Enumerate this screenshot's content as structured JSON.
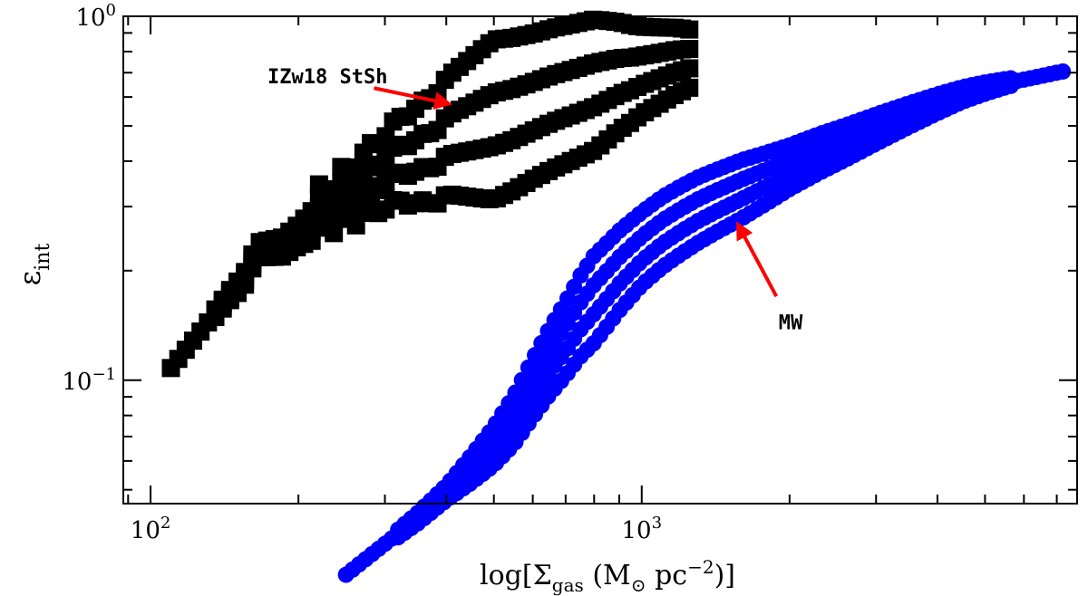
{
  "chart_data": {
    "type": "scatter",
    "xscale": "log",
    "yscale": "log",
    "xlim": [
      88,
      7700
    ],
    "ylim": [
      0.0458,
      1.0
    ],
    "xticks": [
      {
        "value": 100,
        "base": "10",
        "exp": "2"
      },
      {
        "value": 1000,
        "base": "10",
        "exp": "3"
      }
    ],
    "yticks": [
      {
        "value": 0.1,
        "base": "10",
        "exp": "−1"
      },
      {
        "value": 1.0,
        "base": "10",
        "exp": "0"
      }
    ],
    "xlabel": {
      "pre": "log[Σ",
      "sub1": "gas",
      "mid": " (M",
      "sub2": "⊙",
      "mid2": " pc",
      "sup": "−2",
      "post": ")]"
    },
    "ylabel": {
      "main": "ε",
      "sub": "int"
    },
    "grid": false,
    "series": [
      {
        "name": "IZw18 StSh",
        "marker": "square",
        "color": "#000000",
        "center": [
          [
            110,
            0.108
          ],
          [
            145,
            0.171
          ],
          [
            155,
            0.188
          ],
          [
            165,
            0.228
          ],
          [
            185,
            0.232
          ],
          [
            200,
            0.25
          ],
          [
            215,
            0.268
          ],
          [
            215,
            0.32
          ],
          [
            235,
            0.285
          ],
          [
            245,
            0.335
          ],
          [
            265,
            0.315
          ],
          [
            275,
            0.37
          ],
          [
            295,
            0.355
          ],
          [
            315,
            0.41
          ],
          [
            335,
            0.4
          ],
          [
            360,
            0.43
          ],
          [
            380,
            0.425
          ],
          [
            400,
            0.47
          ],
          [
            430,
            0.485
          ],
          [
            460,
            0.5
          ],
          [
            500,
            0.52
          ],
          [
            540,
            0.535
          ],
          [
            580,
            0.555
          ],
          [
            620,
            0.575
          ],
          [
            660,
            0.595
          ],
          [
            700,
            0.61
          ],
          [
            740,
            0.625
          ],
          [
            780,
            0.64
          ],
          [
            820,
            0.655
          ],
          [
            860,
            0.67
          ],
          [
            900,
            0.685
          ],
          [
            950,
            0.695
          ],
          [
            1000,
            0.71
          ],
          [
            1060,
            0.725
          ],
          [
            1120,
            0.74
          ],
          [
            1180,
            0.755
          ],
          [
            1250,
            0.765
          ]
        ],
        "half_width": [
          [
            110,
            0
          ],
          [
            200,
            0.03
          ],
          [
            300,
            0.1
          ],
          [
            400,
            0.16
          ],
          [
            500,
            0.22
          ],
          [
            600,
            0.2
          ],
          [
            800,
            0.18
          ],
          [
            1000,
            0.12
          ],
          [
            1250,
            0.08
          ]
        ]
      },
      {
        "name": "MW",
        "marker": "circle",
        "color": "#0000ff",
        "center": [
          [
            250,
            0.0292
          ],
          [
            300,
            0.0355
          ],
          [
            350,
            0.0418
          ],
          [
            400,
            0.049
          ],
          [
            450,
            0.057
          ],
          [
            500,
            0.066
          ],
          [
            550,
            0.078
          ],
          [
            600,
            0.095
          ],
          [
            650,
            0.113
          ],
          [
            700,
            0.13
          ],
          [
            750,
            0.15
          ],
          [
            800,
            0.167
          ],
          [
            850,
            0.183
          ],
          [
            900,
            0.2
          ],
          [
            1000,
            0.23
          ],
          [
            1100,
            0.255
          ],
          [
            1200,
            0.275
          ],
          [
            1300,
            0.293
          ],
          [
            1400,
            0.308
          ],
          [
            1600,
            0.335
          ],
          [
            1800,
            0.36
          ],
          [
            2000,
            0.385
          ],
          [
            2300,
            0.42
          ],
          [
            2600,
            0.45
          ],
          [
            3000,
            0.49
          ],
          [
            3500,
            0.535
          ],
          [
            4000,
            0.575
          ],
          [
            4500,
            0.61
          ],
          [
            5000,
            0.635
          ],
          [
            5500,
            0.655
          ],
          [
            6000,
            0.67
          ],
          [
            6500,
            0.685
          ],
          [
            7000,
            0.7
          ],
          [
            7200,
            0.705
          ]
        ],
        "half_width": [
          [
            250,
            0
          ],
          [
            400,
            0.02
          ],
          [
            600,
            0.08
          ],
          [
            800,
            0.12
          ],
          [
            1000,
            0.1
          ],
          [
            1300,
            0.09
          ],
          [
            1600,
            0.08
          ],
          [
            2000,
            0.06
          ],
          [
            3000,
            0.04
          ],
          [
            4500,
            0.02
          ],
          [
            7200,
            0
          ]
        ]
      }
    ],
    "annotations": [
      {
        "text": "IZw18 StSh",
        "x": 173,
        "y": 0.655,
        "arrow_from": [
          285,
          0.635
        ],
        "arrow_to": [
          405,
          0.575
        ],
        "color": "#ff0000"
      },
      {
        "text": "MW",
        "x": 1900,
        "y": 0.138,
        "arrow_from": [
          1880,
          0.17
        ],
        "arrow_to": [
          1570,
          0.268
        ],
        "color": "#ff0000"
      }
    ]
  }
}
